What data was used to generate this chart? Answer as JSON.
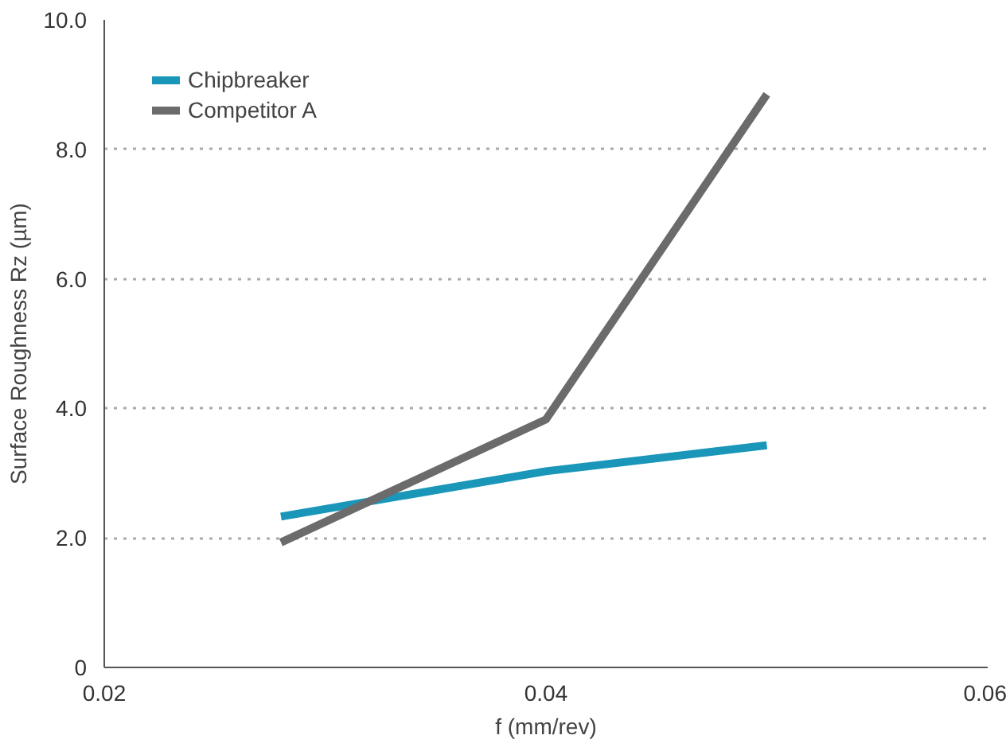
{
  "chart_data": {
    "type": "line",
    "xlabel": "f (mm/rev)",
    "ylabel": "Surface Roughness Rz (µm)",
    "x": [
      0.028,
      0.04,
      0.05
    ],
    "series": [
      {
        "name": "Chipbreaker",
        "color": "#1a96b8",
        "values": [
          2.33,
          3.03,
          3.43
        ]
      },
      {
        "name": "Competitor A",
        "color": "#6b6b6b",
        "values": [
          1.93,
          3.83,
          8.85
        ]
      }
    ],
    "xlim": [
      0.02,
      0.06
    ],
    "xticks": [
      0.02,
      0.04,
      0.06
    ],
    "ylim": [
      0,
      10
    ],
    "yticks": [
      {
        "value": 0,
        "label": "0"
      },
      {
        "value": 2,
        "label": "2.0"
      },
      {
        "value": 4,
        "label": "4.0"
      },
      {
        "value": 6,
        "label": "6.0"
      },
      {
        "value": 8,
        "label": "8.0"
      },
      {
        "value": 10,
        "label": "10.0"
      }
    ],
    "grid": "y",
    "legend": "top left",
    "marker": "none",
    "line_style": "solid"
  }
}
